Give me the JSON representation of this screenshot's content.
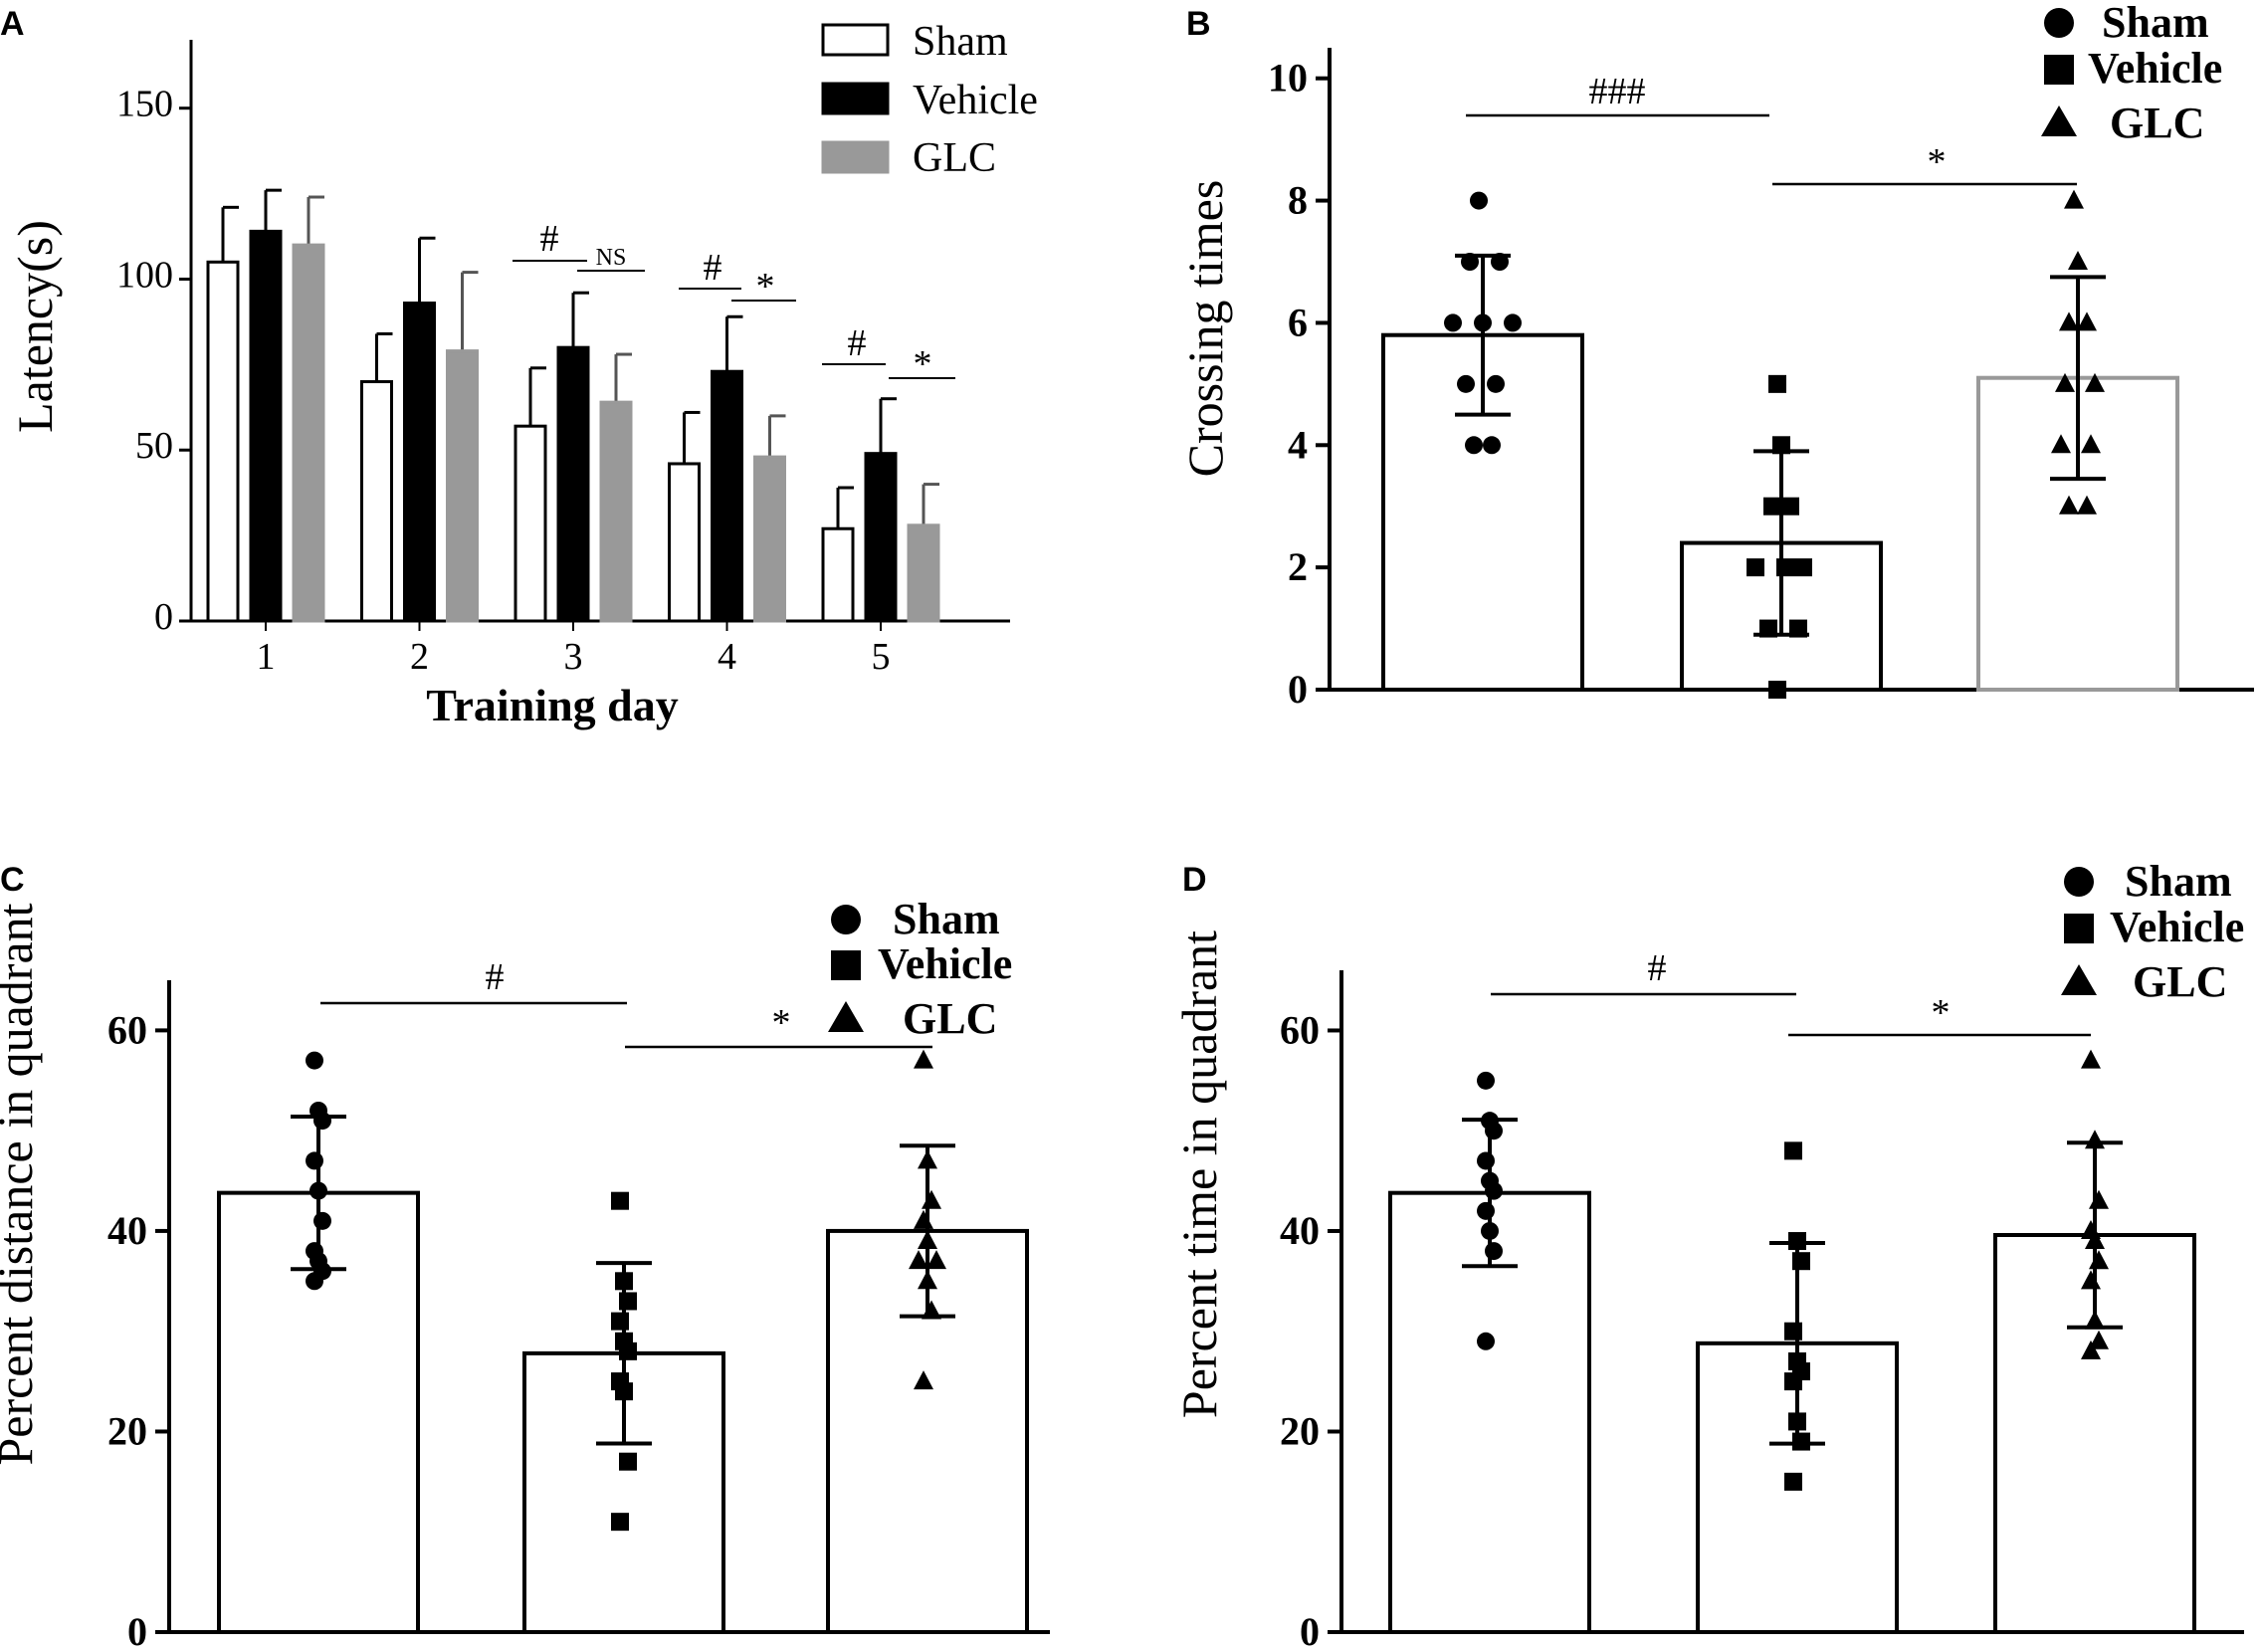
{
  "colors": {
    "sham": "#ffffff",
    "vehicle": "#000000",
    "glc": "#999999",
    "glc_outline": "#999999",
    "axis": "#000000"
  },
  "chart_data": [
    {
      "panel": "A",
      "type": "bar",
      "xlabel": "Training day",
      "ylabel": "Latency(s)",
      "ylim": [
        0,
        170
      ],
      "yticks": [
        0,
        50,
        100,
        150
      ],
      "categories": [
        "1",
        "2",
        "3",
        "4",
        "5"
      ],
      "series": [
        {
          "name": "Sham",
          "values": [
            105,
            70,
            57,
            46,
            27
          ],
          "errors": [
            16,
            14,
            17,
            15,
            12
          ]
        },
        {
          "name": "Vehicle",
          "values": [
            114,
            93,
            80,
            73,
            49
          ],
          "errors": [
            12,
            19,
            16,
            16,
            16
          ]
        },
        {
          "name": "GLC",
          "values": [
            110,
            79,
            64,
            48,
            28
          ],
          "errors": [
            14,
            23,
            14,
            12,
            12
          ]
        }
      ],
      "legend": {
        "placement": "top-right",
        "entries": [
          "Sham",
          "Vehicle",
          "GLC"
        ]
      },
      "annotations": [
        {
          "category": "3",
          "left": "#",
          "right": "NS"
        },
        {
          "category": "4",
          "left": "#",
          "right": "*"
        },
        {
          "category": "5",
          "left": "#",
          "right": "*"
        }
      ]
    },
    {
      "panel": "B",
      "type": "bar",
      "ylabel": "Crossing times",
      "ylim": [
        0,
        10.5
      ],
      "yticks": [
        0,
        2,
        4,
        6,
        8,
        10
      ],
      "categories": [
        "Sham",
        "Vehicle",
        "GLC"
      ],
      "values": [
        5.8,
        2.4,
        5.1
      ],
      "errors": [
        1.3,
        1.5,
        1.65
      ],
      "points": [
        [
          8,
          7,
          7,
          6,
          6,
          6,
          5,
          5,
          4,
          4
        ],
        [
          5,
          4,
          3,
          3,
          2,
          2,
          2,
          1,
          1,
          0
        ],
        [
          8,
          7,
          6,
          6,
          5,
          5,
          4,
          4,
          3,
          3
        ]
      ],
      "legend": {
        "placement": "top-right",
        "entries": [
          "Sham",
          "Vehicle",
          "GLC"
        ]
      },
      "annotations": [
        {
          "between": [
            "Sham",
            "Vehicle"
          ],
          "text": "###"
        },
        {
          "between": [
            "Vehicle",
            "GLC"
          ],
          "text": "*"
        }
      ]
    },
    {
      "panel": "C",
      "type": "bar",
      "ylabel": "Percent distance in quadrant",
      "ylim": [
        0,
        65
      ],
      "yticks": [
        0,
        20,
        40,
        60
      ],
      "categories": [
        "Sham",
        "Vehicle",
        "GLC"
      ],
      "values": [
        43.8,
        27.8,
        40.0
      ],
      "errors": [
        7.6,
        9.0,
        8.5
      ],
      "points": [
        [
          57,
          52,
          51,
          47,
          44,
          41,
          38,
          37,
          36,
          35
        ],
        [
          43,
          35,
          33,
          31,
          29,
          28,
          25,
          24,
          17,
          11
        ],
        [
          57,
          47,
          43,
          41,
          39,
          37,
          37,
          35,
          32,
          25
        ]
      ],
      "legend": {
        "placement": "top-right",
        "entries": [
          "Sham",
          "Vehicle",
          "GLC"
        ]
      },
      "annotations": [
        {
          "between": [
            "Sham",
            "Vehicle"
          ],
          "text": "#"
        },
        {
          "between": [
            "Vehicle",
            "GLC"
          ],
          "text": "*"
        }
      ]
    },
    {
      "panel": "D",
      "type": "bar",
      "ylabel": "Percent time in quadrant",
      "ylim": [
        0,
        66
      ],
      "yticks": [
        0,
        20,
        40,
        60
      ],
      "categories": [
        "Sham",
        "Vehicle",
        "GLC"
      ],
      "values": [
        43.8,
        28.8,
        39.6
      ],
      "errors": [
        7.3,
        10.0,
        9.2
      ],
      "points": [
        [
          55,
          51,
          50,
          47,
          45,
          44,
          42,
          40,
          38,
          29
        ],
        [
          48,
          39,
          37,
          30,
          27,
          26,
          25,
          21,
          19,
          15
        ],
        [
          57,
          49,
          43,
          40,
          39,
          37,
          35,
          31,
          29,
          28
        ]
      ],
      "legend": {
        "placement": "top-right",
        "entries": [
          "Sham",
          "Vehicle",
          "GLC"
        ]
      },
      "annotations": [
        {
          "between": [
            "Sham",
            "Vehicle"
          ],
          "text": "#"
        },
        {
          "between": [
            "Vehicle",
            "GLC"
          ],
          "text": "*"
        }
      ]
    }
  ]
}
